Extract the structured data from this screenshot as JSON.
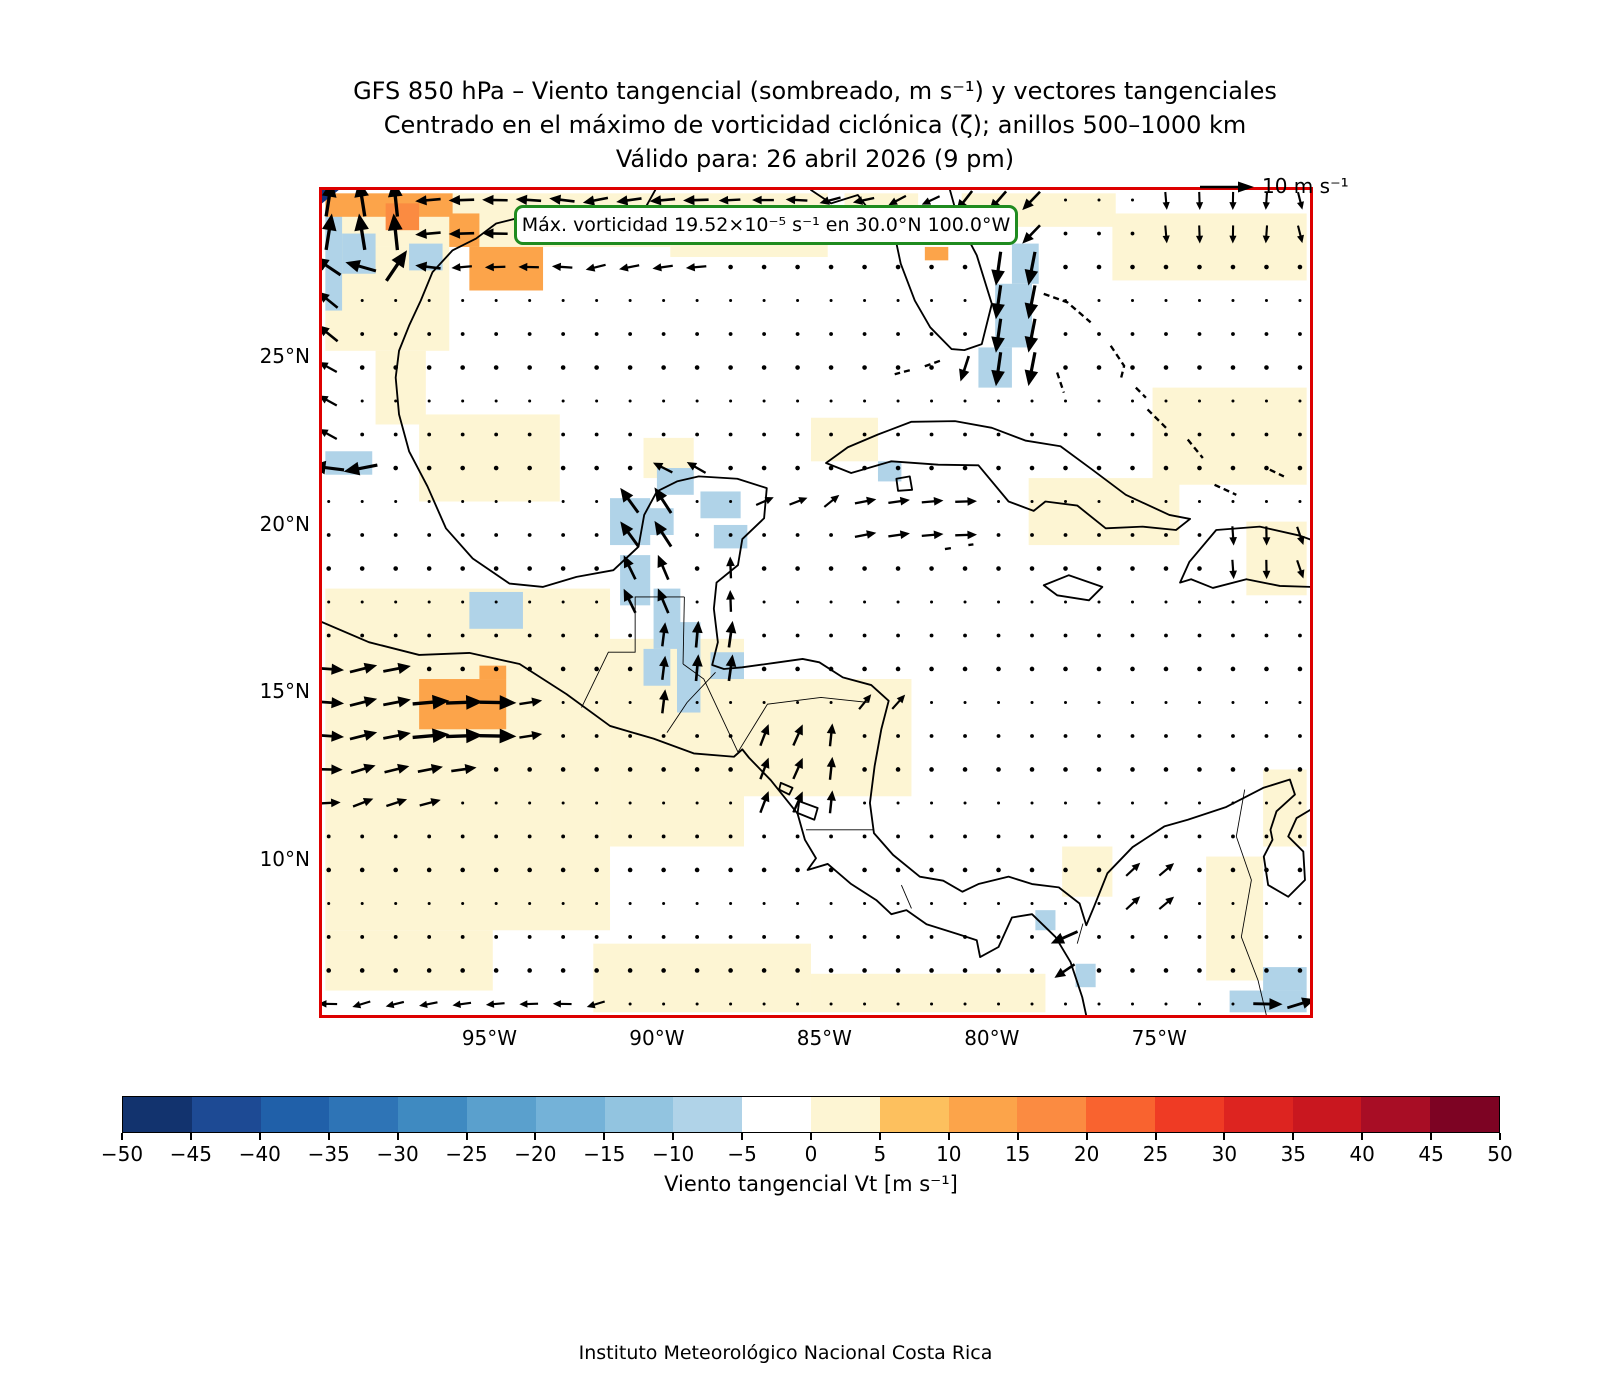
{
  "title": {
    "line1": "GFS 850 hPa – Viento tangencial (sombreado, m s⁻¹) y vectores tangenciales",
    "line2": "Centrado en el máximo de vorticidad ciclónica (ζ); anillos 500–1000 km",
    "line3": "Válido para: 26 abril 2026 (9 pm)"
  },
  "quiver_key": {
    "label": "10 m s⁻¹"
  },
  "annotation": {
    "text": "Máx. vorticidad 19.52×10⁻⁵ s⁻¹ en 30.0°N 100.0°W",
    "border_color": "#1f8b1f"
  },
  "footer": "Instituto Meteorológico Nacional Costa Rica",
  "map": {
    "border_color": "#dd0000",
    "lon_min": -100,
    "lon_max": -70.5,
    "lat_min": 5.37,
    "lat_max": 30,
    "x_ticks": [
      {
        "label": "95°W",
        "lon": -95
      },
      {
        "label": "90°W",
        "lon": -90
      },
      {
        "label": "85°W",
        "lon": -85
      },
      {
        "label": "80°W",
        "lon": -80
      },
      {
        "label": "75°W",
        "lon": -75
      }
    ],
    "y_ticks": [
      {
        "label": "25°N",
        "lat": 25
      },
      {
        "label": "20°N",
        "lat": 20
      },
      {
        "label": "15°N",
        "lat": 15
      },
      {
        "label": "10°N",
        "lat": 10
      }
    ]
  },
  "colorbar": {
    "label": "Viento tangencial Vt [m s⁻¹]",
    "ticks": [
      "−50",
      "−45",
      "−40",
      "−35",
      "−30",
      "−25",
      "−20",
      "−15",
      "−10",
      "−5",
      "0",
      "5",
      "10",
      "15",
      "20",
      "25",
      "30",
      "35",
      "40",
      "45",
      "50"
    ],
    "tick_values": [
      -50,
      -45,
      -40,
      -35,
      -30,
      -25,
      -20,
      -15,
      -10,
      -5,
      0,
      5,
      10,
      15,
      20,
      25,
      30,
      35,
      40,
      45,
      50
    ],
    "colors": [
      "#12336e",
      "#1d4a94",
      "#2060a9",
      "#2e74b6",
      "#3f8ac1",
      "#5aa0cd",
      "#74b2d8",
      "#92c4e0",
      "#b0d3e8",
      "#ffffff",
      "#fdf5d3",
      "#fdc05e",
      "#fca44a",
      "#fb8b41",
      "#f9632f",
      "#ef3b24",
      "#dd2420",
      "#c9171f",
      "#a80d25",
      "#7d0323"
    ]
  },
  "chart_data": {
    "type": "map-quiver",
    "title": "GFS 850 hPa tangential wind (shaded) and tangential vectors",
    "valid_time": "26 abril 2026 (9 pm)",
    "vorticity_max": {
      "value_text": "19.52×10⁻⁵ s⁻¹",
      "lat": 30.0,
      "lon": -100.0
    },
    "shading_units": "m s⁻¹",
    "shading_levels": [
      -50,
      -45,
      -40,
      -35,
      -30,
      -25,
      -20,
      -15,
      -10,
      -5,
      0,
      5,
      10,
      15,
      20,
      25,
      30,
      35,
      40,
      45,
      50
    ],
    "shading_cells": [
      [
        -99.9,
        -89.6,
        28.3,
        29.9,
        2.5
      ],
      [
        -89.6,
        -84.9,
        28.0,
        29.9,
        2.5
      ],
      [
        -84.4,
        -82.2,
        28.6,
        29.9,
        2.5
      ],
      [
        -80.9,
        -76.3,
        28.9,
        29.9,
        2.5
      ],
      [
        -76.4,
        -70.6,
        27.3,
        29.3,
        2.5
      ],
      [
        -99.9,
        -96.2,
        25.2,
        28.3,
        2.5
      ],
      [
        -98.4,
        -96.9,
        23.0,
        25.2,
        2.5
      ],
      [
        -97.1,
        -92.9,
        20.7,
        23.3,
        2.5
      ],
      [
        -99.9,
        -91.4,
        7.9,
        18.1,
        2.5
      ],
      [
        -91.4,
        -87.4,
        10.4,
        16.6,
        2.5
      ],
      [
        -87.4,
        -82.4,
        11.9,
        15.4,
        2.5
      ],
      [
        -99.9,
        -94.9,
        6.1,
        7.9,
        2.5
      ],
      [
        -91.9,
        -85.4,
        5.45,
        7.5,
        2.5
      ],
      [
        -85.4,
        -78.4,
        5.45,
        6.6,
        2.5
      ],
      [
        -75.2,
        -70.6,
        21.2,
        24.1,
        2.5
      ],
      [
        -72.4,
        -70.6,
        17.9,
        20.1,
        2.5
      ],
      [
        -78.9,
        -74.4,
        19.4,
        21.4,
        2.5
      ],
      [
        -71.9,
        -70.6,
        10.4,
        12.7,
        2.5
      ],
      [
        -73.6,
        -71.9,
        6.4,
        10.1,
        2.5
      ],
      [
        -90.4,
        -88.9,
        21.4,
        22.6,
        2.5
      ],
      [
        -85.4,
        -83.4,
        21.9,
        23.2,
        2.5
      ],
      [
        -77.9,
        -76.4,
        8.9,
        10.4,
        2.5
      ],
      [
        -99.9,
        -99.4,
        26.4,
        29.4,
        -7.5
      ],
      [
        -99.4,
        -98.4,
        27.5,
        28.7,
        -7.5
      ],
      [
        -97.4,
        -96.4,
        27.6,
        28.4,
        -7.5
      ],
      [
        -99.9,
        -98.5,
        21.5,
        22.2,
        -7.5
      ],
      [
        -79.4,
        -78.6,
        27.2,
        28.4,
        -7.5
      ],
      [
        -79.9,
        -78.8,
        25.3,
        27.2,
        -7.5
      ],
      [
        -80.4,
        -79.4,
        24.1,
        25.3,
        -7.5
      ],
      [
        -83.4,
        -82.7,
        21.3,
        21.9,
        -7.5
      ],
      [
        -90.0,
        -88.9,
        20.9,
        21.7,
        -7.5
      ],
      [
        -91.4,
        -90.2,
        19.4,
        20.8,
        -7.5
      ],
      [
        -90.4,
        -89.5,
        19.7,
        20.5,
        -7.5
      ],
      [
        -88.7,
        -87.5,
        20.2,
        21.0,
        -7.5
      ],
      [
        -88.3,
        -87.3,
        19.3,
        20.0,
        -7.5
      ],
      [
        -91.1,
        -90.2,
        17.6,
        19.1,
        -7.5
      ],
      [
        -90.1,
        -89.3,
        16.3,
        18.1,
        -7.5
      ],
      [
        -89.4,
        -88.7,
        14.4,
        17.1,
        -7.5
      ],
      [
        -90.4,
        -89.6,
        15.2,
        16.3,
        -7.5
      ],
      [
        -88.4,
        -87.4,
        15.4,
        16.2,
        -7.5
      ],
      [
        -95.6,
        -94.0,
        16.9,
        18.0,
        -7.5
      ],
      [
        -77.5,
        -76.9,
        6.2,
        6.9,
        -7.5
      ],
      [
        -72.9,
        -70.6,
        5.45,
        6.1,
        -7.5
      ],
      [
        -71.9,
        -70.6,
        6.1,
        6.8,
        -7.5
      ],
      [
        -78.7,
        -78.1,
        7.9,
        8.5,
        -7.5
      ],
      [
        -99.9,
        -96.1,
        29.2,
        29.9,
        12.5
      ],
      [
        -98.1,
        -97.1,
        28.8,
        29.6,
        17.5
      ],
      [
        -96.2,
        -95.3,
        28.3,
        29.3,
        12.5
      ],
      [
        -95.6,
        -93.4,
        27.0,
        28.3,
        12.5
      ],
      [
        -84.1,
        -83.3,
        28.4,
        28.9,
        12.5
      ],
      [
        -82.0,
        -81.3,
        27.9,
        28.3,
        12.5
      ],
      [
        -97.1,
        -94.5,
        13.9,
        15.4,
        12.5
      ],
      [
        -95.3,
        -94.5,
        15.4,
        15.8,
        12.5
      ]
    ],
    "quiver": {
      "units": "m s⁻¹",
      "reference": 10,
      "grid": {
        "lon_start": -99.8,
        "lon_step": 1,
        "cols": 30,
        "lat_start": 29.7,
        "lat_step": -1,
        "rows": 25
      },
      "regions": [
        {
          "b": [
            -100,
            -96.8,
            28.6,
            30.2
          ],
          "a": 90,
          "m": 1.0
        },
        {
          "b": [
            -98.4,
            -97.2,
            27.6,
            28.6
          ],
          "a": 50,
          "m": 1.0
        },
        {
          "b": [
            -100,
            -98.4,
            27.6,
            28.6
          ],
          "a": 155,
          "m": 0.8
        },
        {
          "b": [
            -97.2,
            -95.8,
            27.6,
            28.6
          ],
          "a": 170,
          "m": 0.55
        },
        {
          "b": [
            -100,
            -98.8,
            25.6,
            27.6
          ],
          "a": 150,
          "m": 0.55
        },
        {
          "b": [
            -96.8,
            -88.5,
            28.6,
            30.2
          ],
          "a": 182,
          "m": 0.55
        },
        {
          "b": [
            -88.5,
            -83.0,
            28.6,
            30.2
          ],
          "a": 186,
          "m": 0.4
        },
        {
          "b": [
            -83.0,
            -81.0,
            28.6,
            30.2
          ],
          "a": 205,
          "m": 0.32
        },
        {
          "b": [
            -96.5,
            -88.0,
            27.6,
            28.6
          ],
          "a": 185,
          "m": 0.35
        },
        {
          "b": [
            -81.0,
            -78.4,
            27.8,
            30.2
          ],
          "a": 235,
          "m": 0.55
        },
        {
          "b": [
            -79.9,
            -78.5,
            23.9,
            27.8
          ],
          "a": 268,
          "m": 0.9
        },
        {
          "b": [
            -81.3,
            -79.9,
            23.9,
            25.3
          ],
          "a": 255,
          "m": 0.6
        },
        {
          "b": [
            -75.2,
            -70.7,
            28.6,
            30.2
          ],
          "a": 275,
          "m": 0.25
        },
        {
          "b": [
            -100,
            -98.5,
            21.4,
            22.4
          ],
          "a": 182,
          "m": 0.9
        },
        {
          "b": [
            -100,
            -98.8,
            22.4,
            25.6
          ],
          "a": 160,
          "m": 0.35
        },
        {
          "b": [
            -91.7,
            -88.9,
            19.4,
            21.6
          ],
          "a": 120,
          "m": 0.75
        },
        {
          "b": [
            -91.7,
            -89.3,
            17.4,
            19.4
          ],
          "a": 110,
          "m": 0.6
        },
        {
          "b": [
            -89.3,
            -87.4,
            15.4,
            17.4
          ],
          "a": 85,
          "m": 0.6
        },
        {
          "b": [
            -90.7,
            -89.3,
            13.9,
            17.4
          ],
          "a": 80,
          "m": 0.5
        },
        {
          "b": [
            -88.6,
            -87.4,
            17.4,
            19.0
          ],
          "a": 95,
          "m": 0.4
        },
        {
          "b": [
            -97.3,
            -94.4,
            13.7,
            15.6
          ],
          "a": 2,
          "m": 1.0
        },
        {
          "b": [
            -100,
            -97.3,
            13.7,
            15.8
          ],
          "a": 5,
          "m": 0.65
        },
        {
          "b": [
            -100,
            -96.2,
            15.8,
            16.6
          ],
          "a": 0,
          "m": 0.5
        },
        {
          "b": [
            -100,
            -95.4,
            12.6,
            13.7
          ],
          "a": 8,
          "m": 0.55
        },
        {
          "b": [
            -100,
            -96.2,
            11.4,
            12.6
          ],
          "a": 12,
          "m": 0.4
        },
        {
          "b": [
            -94.4,
            -92.8,
            13.7,
            15.0
          ],
          "a": 15,
          "m": 0.45
        },
        {
          "b": [
            -87.2,
            -84.6,
            11.5,
            13.9
          ],
          "a": 75,
          "m": 0.45
        },
        {
          "b": [
            -84.4,
            -80.4,
            19.6,
            21.3
          ],
          "a": 5,
          "m": 0.4
        },
        {
          "b": [
            -86.8,
            -84.4,
            20.0,
            21.6
          ],
          "a": 30,
          "m": 0.3
        },
        {
          "b": [
            -78.7,
            -77.6,
            7.6,
            8.7
          ],
          "a": 195,
          "m": 0.7
        },
        {
          "b": [
            -78.3,
            -77.3,
            6.3,
            7.6
          ],
          "a": 205,
          "m": 0.5
        },
        {
          "b": [
            -71.9,
            -70.7,
            5.3,
            6.3
          ],
          "a": 8,
          "m": 0.7
        },
        {
          "b": [
            -100,
            -91.0,
            5.3,
            6.5
          ],
          "a": 188,
          "m": 0.28
        },
        {
          "b": [
            -90.0,
            -88.0,
            21.3,
            22.3
          ],
          "a": 150,
          "m": 0.4
        },
        {
          "b": [
            -84.2,
            -82.6,
            13.9,
            15.4
          ],
          "a": 45,
          "m": 0.3
        },
        {
          "b": [
            -76.6,
            -74.6,
            8.6,
            10.6
          ],
          "a": 40,
          "m": 0.3
        },
        {
          "b": [
            -73.0,
            -70.7,
            18.6,
            20.2
          ],
          "a": 280,
          "m": 0.3
        }
      ]
    },
    "basemap": {
      "coastlines": [
        "M 9.95,0 L 9.7,0.45 L 10.3,0.75 L 10.75,1.0 L 10.2,1.05 L 9.4,0.85 L 8.4,0.55 L 7.3,0.5 L 6.2,0.75 L 5.2,1.0 L 4.6,1.45 L 3.9,1.8 L 3.3,2.45 L 2.95,3.3 L 2.6,4.05 L 2.3,4.8 L 2.2,5.6 L 2.3,6.7 L 2.6,7.8 L 3.15,8.85 L 3.7,10.1 L 4.5,11.0 L 5.6,11.75 L 6.6,11.85 L 7.6,11.55 L 8.7,11.35 L 9.45,10.65 L 9.62,9.7 L 10.0,9.0 L 10.6,8.7 L 11.25,8.55 L 12.4,8.62 L 13.28,8.9 L 13.2,9.8 L 12.55,10.42 L 12.42,11.2 L 11.78,11.72 L 11.7,12.5 L 11.82,13.5 L 11.65,14.18 L 12.0,14.3 L 12.55,14.25 L 13.5,14.12 L 14.35,14.0 L 14.85,14.1 L 15.55,14.55 L 16.4,14.78 L 16.92,15.25 L 16.7,16.1 L 16.5,17.2 L 16.36,18.3 L 16.48,19.2 L 17.05,19.85 L 17.85,20.5 L 18.55,20.62 L 19.12,20.95 L 19.6,20.72 L 20.5,20.5 L 21.2,20.72 L 22.0,20.82 L 22.62,21.3 L 22.82,21.95 L 23.05,21.4 L 23.45,20.4 L 24.2,19.62 L 25.15,19.0 L 25.85,18.8 L 27.0,18.42 L 28.1,17.85 L 28.9,17.6 L 29.05,18.05 L 28.5,18.55 L 28.32,19.1 L 28.38,19.4 L 28.12,19.9 L 28.25,20.75 L 28.85,21.1 L 29.35,20.6 L 29.3,19.75 L 28.85,19.3 L 29.1,18.75 L 29.52,18.5",
        "M 0,12.9 L 1.4,13.5 L 2.9,13.88 L 4.4,13.82 L 5.9,14.15 L 7.3,15.05 L 8.6,16.0 L 9.9,16.38 L 11.1,16.82 L 12.3,16.92 L 12.55,16.7 L 12.75,16.95 L 13.4,17.62 L 14.2,18.62 L 14.42,19.4 L 14.75,19.95 L 14.5,20.3 L 15.1,20.12 L 15.8,20.72 L 16.55,21.2 L 17.0,21.62 L 17.45,21.5 L 18.05,21.92 L 19.0,22.22 L 19.55,22.4 L 19.65,22.9 L 20.2,22.6 L 20.6,21.72 L 21.2,21.62 L 21.9,22.3 L 22.35,23.05 L 22.7,24.1 L 22.82,24.65",
        "M 14.6,0 L 15.2,0.4 L 16.0,0.15 L 16.45,0.75 L 17.1,1.35 L 17.28,2.2 L 17.7,3.3 L 18.16,4.1 L 18.8,4.75 L 19.18,4.78 L 19.7,4.6 L 20.0,3.4 L 19.55,1.95 L 19.0,0.9 L 18.75,0",
        "M 15.05,8.15 L 15.7,7.68 L 16.6,7.3 L 17.6,6.92 L 18.9,6.9 L 20.0,7.1 L 21.0,7.48 L 22.05,7.65 L 23.0,8.35 L 24.0,9.1 L 25.3,9.7 L 25.92,9.82 L 25.5,10.15 L 24.5,10.05 L 23.4,10.1 L 22.55,9.42 L 21.6,9.3 L 21.25,9.58 L 20.5,9.3 L 19.6,8.22 L 18.4,8.2 L 17.0,8.1 L 15.8,8.45 Z",
        "M 17.15,8.62 L 17.55,8.55 L 17.62,8.95 L 17.2,8.98 Z",
        "M 25.62,11.72 L 25.9,11.1 L 26.7,10.15 L 28.0,10.05 L 29.2,10.32 L 29.55,10.45 L 29.55,11.85 L 28.6,11.82 L 27.6,11.62 L 26.6,11.88 L 25.95,11.62 Z",
        "M 21.55,11.8 L 22.3,11.5 L 23.3,11.85 L 22.9,12.25 L 21.95,12.1 Z",
        "M 13.7,17.7 L 14.05,17.85 L 13.95,18.05 L 13.65,17.9 Z",
        "M 14.25,18.25 L 14.8,18.45 L 14.7,18.8 L 14.2,18.6 Z"
      ],
      "island_dashes": [
        "M 18.45,5.1 L 17.95,5.28",
        "M 17.55,5.38 L 17.1,5.5",
        "M 21.55,3.1 L 22.25,3.35 L 22.95,3.95",
        "M 21.95,5.45 L 22.15,6.05",
        "M 23.55,4.65 L 23.95,5.25 L 23.85,5.65",
        "M 24.65,6.55 L 25.2,7.1",
        "M 25.85,7.45 L 26.3,8.0",
        "M 26.65,8.8 L 27.3,9.1",
        "M 28.3,8.35 L 28.72,8.55",
        "M 24.3,5.9 L 24.6,6.2",
        "M 18.6,10.72 L 18.85,10.68",
        "M 19.3,10.6 L 19.45,10.58"
      ],
      "borders": [
        "M 7.75,15.45 L 8.55,13.8 L 9.35,13.8 L 9.35,12.15 L 10.82,12.15",
        "M 10.82,12.15 L 10.78,14.15",
        "M 10.78,14.15 L 11.4,14.6 L 12.42,16.78",
        "M 10.3,16.2 L 10.9,15.3 L 11.75,14.4",
        "M 12.42,16.78 L 13.3,15.35 L 14.9,15.15 L 16.3,15.3",
        "M 14.45,19.1 L 16.45,19.1",
        "M 17.3,20.75 L 17.6,21.45",
        "M 22.72,21.9 L 22.55,22.5",
        "M 27.55,17.9 L 27.3,19.3 L 27.75,20.6 L 27.45,22.3 L 27.95,23.6 L 28.2,24.65"
      ],
      "vorticity_marker": "0,0 0.5,0 0,0.4",
      "vorticity_marker_color": "#14327c"
    }
  }
}
